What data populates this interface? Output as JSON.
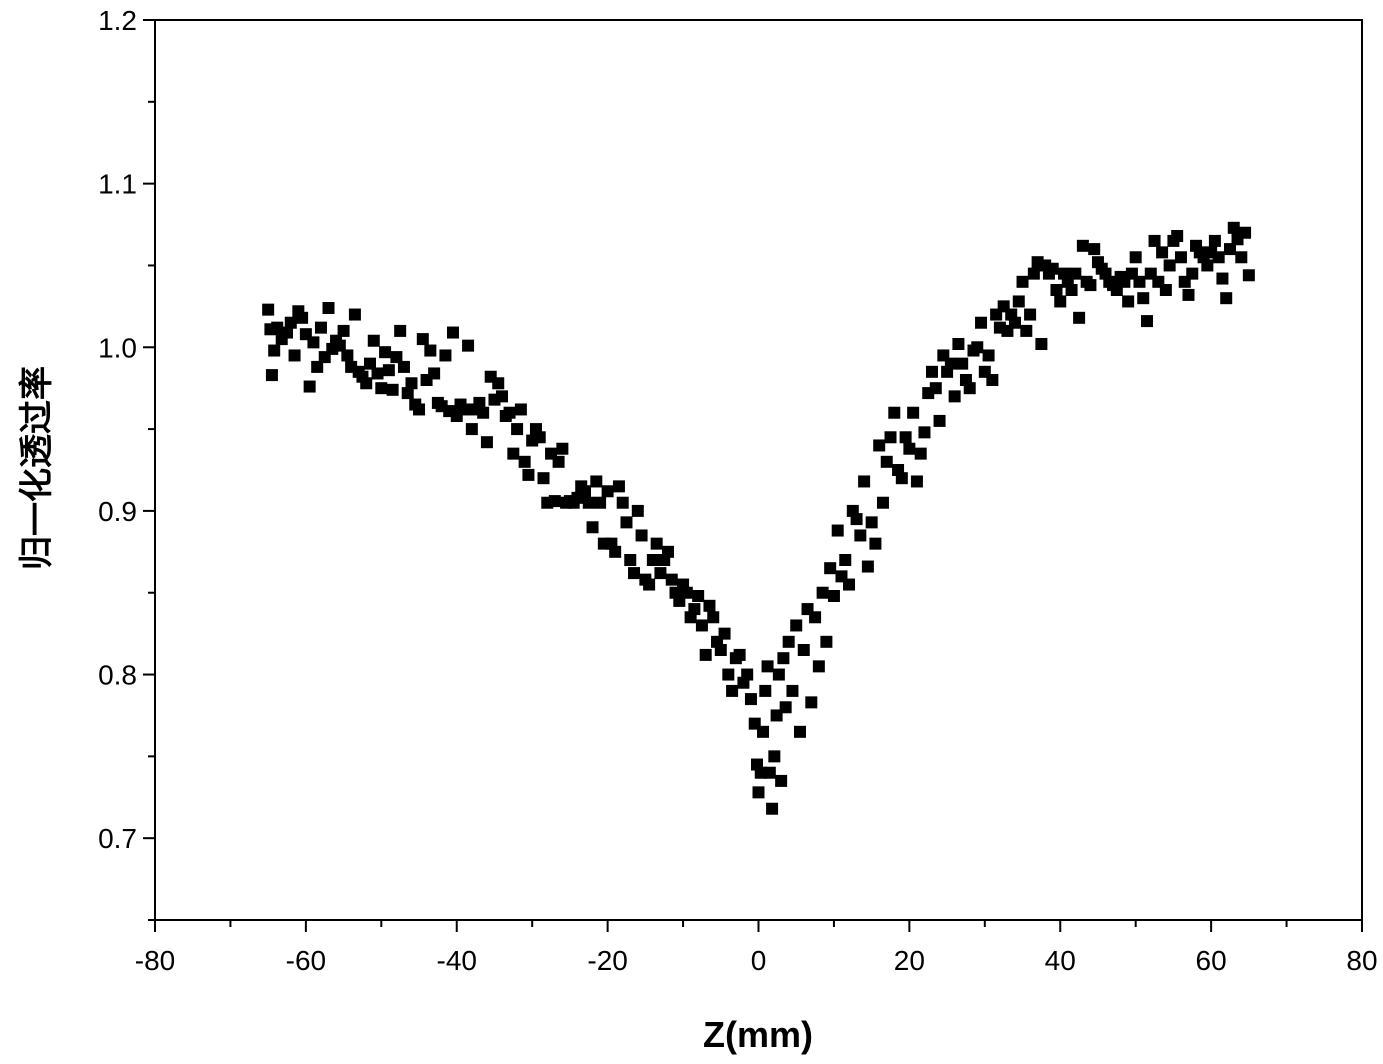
{
  "chart_data": {
    "type": "scatter",
    "title": "",
    "xlabel": "Z(mm)",
    "ylabel": "归一化透过率",
    "xlim": [
      -80,
      80
    ],
    "ylim": [
      0.65,
      1.2
    ],
    "x_ticks": [
      -80,
      -60,
      -40,
      -20,
      0,
      20,
      40,
      60,
      80
    ],
    "x_tick_labels": [
      "-80",
      "-60",
      "-40",
      "-20",
      "0",
      "20",
      "40",
      "60",
      "80"
    ],
    "y_ticks": [
      0.7,
      0.8,
      0.9,
      1.0,
      1.1,
      1.2
    ],
    "y_tick_labels": [
      "0.7",
      "0.8",
      "0.9",
      "1.0",
      "1.1",
      "1.2"
    ],
    "grid": false,
    "marker": "square",
    "marker_color": "#000000",
    "series": [
      {
        "points": [
          [
            -65,
            1.023
          ],
          [
            -64.7,
            1.011
          ],
          [
            -64.5,
            0.983
          ],
          [
            -64.2,
            0.998
          ],
          [
            -63.8,
            1.012
          ],
          [
            -63.2,
            1.005
          ],
          [
            -62.5,
            1.009
          ],
          [
            -62,
            1.015
          ],
          [
            -61.5,
            0.995
          ],
          [
            -61,
            1.022
          ],
          [
            -60.5,
            1.018
          ],
          [
            -60,
            1.008
          ],
          [
            -59.5,
            0.976
          ],
          [
            -59,
            1.003
          ],
          [
            -58.5,
            0.988
          ],
          [
            -58,
            1.012
          ],
          [
            -57.5,
            0.994
          ],
          [
            -57,
            1.024
          ],
          [
            -56.5,
            0.999
          ],
          [
            -56,
            1.004
          ],
          [
            -55.5,
            1.001
          ],
          [
            -55,
            1.01
          ],
          [
            -54.5,
            0.995
          ],
          [
            -54,
            0.988
          ],
          [
            -53.5,
            1.02
          ],
          [
            -53,
            0.985
          ],
          [
            -52.5,
            0.982
          ],
          [
            -52,
            0.978
          ],
          [
            -51.5,
            0.99
          ],
          [
            -51,
            1.004
          ],
          [
            -50.5,
            0.984
          ],
          [
            -50,
            0.975
          ],
          [
            -49.5,
            0.997
          ],
          [
            -49,
            0.986
          ],
          [
            -48.5,
            0.974
          ],
          [
            -48,
            0.994
          ],
          [
            -47.5,
            1.01
          ],
          [
            -47,
            0.988
          ],
          [
            -46.5,
            0.972
          ],
          [
            -46,
            0.978
          ],
          [
            -45.5,
            0.965
          ],
          [
            -45,
            0.962
          ],
          [
            -44.5,
            1.005
          ],
          [
            -44,
            0.98
          ],
          [
            -43.5,
            0.998
          ],
          [
            -43,
            0.984
          ],
          [
            -42.5,
            0.966
          ],
          [
            -42,
            0.964
          ],
          [
            -41.5,
            0.995
          ],
          [
            -41,
            0.961
          ],
          [
            -40.5,
            1.009
          ],
          [
            -40,
            0.958
          ],
          [
            -39.5,
            0.965
          ],
          [
            -39,
            0.962
          ],
          [
            -38.5,
            1.001
          ],
          [
            -38,
            0.95
          ],
          [
            -37.5,
            0.962
          ],
          [
            -37,
            0.966
          ],
          [
            -36.5,
            0.96
          ],
          [
            -36,
            0.942
          ],
          [
            -35.5,
            0.982
          ],
          [
            -35,
            0.968
          ],
          [
            -34.5,
            0.978
          ],
          [
            -34,
            0.97
          ],
          [
            -33.5,
            0.958
          ],
          [
            -33,
            0.96
          ],
          [
            -32.5,
            0.935
          ],
          [
            -32,
            0.95
          ],
          [
            -31.5,
            0.962
          ],
          [
            -31,
            0.93
          ],
          [
            -30.5,
            0.922
          ],
          [
            -30,
            0.943
          ],
          [
            -29.5,
            0.95
          ],
          [
            -29,
            0.945
          ],
          [
            -28.5,
            0.92
          ],
          [
            -28,
            0.905
          ],
          [
            -27.5,
            0.935
          ],
          [
            -27,
            0.906
          ],
          [
            -26.5,
            0.93
          ],
          [
            -26,
            0.938
          ],
          [
            -25.5,
            0.905
          ],
          [
            -25,
            0.906
          ],
          [
            -24.5,
            0.905
          ],
          [
            -24,
            0.908
          ],
          [
            -23.5,
            0.915
          ],
          [
            -23,
            0.912
          ],
          [
            -22.5,
            0.905
          ],
          [
            -22,
            0.89
          ],
          [
            -21.5,
            0.918
          ],
          [
            -21,
            0.905
          ],
          [
            -20.5,
            0.88
          ],
          [
            -20,
            0.912
          ],
          [
            -19.5,
            0.88
          ],
          [
            -19,
            0.875
          ],
          [
            -18.5,
            0.915
          ],
          [
            -18,
            0.905
          ],
          [
            -17.5,
            0.893
          ],
          [
            -17,
            0.87
          ],
          [
            -16.5,
            0.862
          ],
          [
            -16,
            0.9
          ],
          [
            -15.5,
            0.885
          ],
          [
            -15,
            0.858
          ],
          [
            -14.5,
            0.855
          ],
          [
            -14,
            0.87
          ],
          [
            -13.5,
            0.88
          ],
          [
            -13,
            0.862
          ],
          [
            -12.5,
            0.87
          ],
          [
            -12,
            0.875
          ],
          [
            -11.5,
            0.858
          ],
          [
            -11,
            0.85
          ],
          [
            -10.5,
            0.845
          ],
          [
            -10,
            0.855
          ],
          [
            -9.5,
            0.85
          ],
          [
            -9,
            0.835
          ],
          [
            -8.5,
            0.84
          ],
          [
            -8,
            0.848
          ],
          [
            -7.5,
            0.83
          ],
          [
            -7,
            0.812
          ],
          [
            -6.5,
            0.842
          ],
          [
            -6,
            0.835
          ],
          [
            -5.5,
            0.82
          ],
          [
            -5,
            0.815
          ],
          [
            -4.5,
            0.825
          ],
          [
            -4,
            0.8
          ],
          [
            -3.5,
            0.79
          ],
          [
            -3,
            0.81
          ],
          [
            -2.5,
            0.812
          ],
          [
            -2,
            0.795
          ],
          [
            -1.5,
            0.8
          ],
          [
            -1,
            0.785
          ],
          [
            -0.5,
            0.77
          ],
          [
            -0.2,
            0.745
          ],
          [
            0,
            0.728
          ],
          [
            0.3,
            0.74
          ],
          [
            0.6,
            0.765
          ],
          [
            0.9,
            0.79
          ],
          [
            1.2,
            0.805
          ],
          [
            1.5,
            0.74
          ],
          [
            1.8,
            0.718
          ],
          [
            2.1,
            0.75
          ],
          [
            2.4,
            0.775
          ],
          [
            2.7,
            0.8
          ],
          [
            3,
            0.735
          ],
          [
            3.3,
            0.81
          ],
          [
            3.6,
            0.78
          ],
          [
            4,
            0.82
          ],
          [
            4.5,
            0.79
          ],
          [
            5,
            0.83
          ],
          [
            5.5,
            0.765
          ],
          [
            6,
            0.815
          ],
          [
            6.5,
            0.84
          ],
          [
            7,
            0.783
          ],
          [
            7.5,
            0.835
          ],
          [
            8,
            0.805
          ],
          [
            8.5,
            0.85
          ],
          [
            9,
            0.82
          ],
          [
            9.5,
            0.865
          ],
          [
            10,
            0.848
          ],
          [
            10.5,
            0.888
          ],
          [
            11,
            0.86
          ],
          [
            11.5,
            0.87
          ],
          [
            12,
            0.855
          ],
          [
            12.5,
            0.9
          ],
          [
            13,
            0.895
          ],
          [
            13.5,
            0.885
          ],
          [
            14,
            0.918
          ],
          [
            14.5,
            0.866
          ],
          [
            15,
            0.893
          ],
          [
            15.5,
            0.88
          ],
          [
            16,
            0.94
          ],
          [
            16.5,
            0.905
          ],
          [
            17,
            0.93
          ],
          [
            17.5,
            0.945
          ],
          [
            18,
            0.96
          ],
          [
            18.5,
            0.925
          ],
          [
            19,
            0.92
          ],
          [
            19.5,
            0.945
          ],
          [
            20,
            0.938
          ],
          [
            20.5,
            0.96
          ],
          [
            21,
            0.918
          ],
          [
            21.5,
            0.935
          ],
          [
            22,
            0.948
          ],
          [
            22.5,
            0.972
          ],
          [
            23,
            0.985
          ],
          [
            23.5,
            0.975
          ],
          [
            24,
            0.955
          ],
          [
            24.5,
            0.995
          ],
          [
            25,
            0.985
          ],
          [
            25.5,
            0.99
          ],
          [
            26,
            0.97
          ],
          [
            26.5,
            1.002
          ],
          [
            27,
            0.99
          ],
          [
            27.5,
            0.98
          ],
          [
            28,
            0.975
          ],
          [
            28.5,
            0.998
          ],
          [
            29,
            1.0
          ],
          [
            29.5,
            1.015
          ],
          [
            30,
            0.985
          ],
          [
            30.5,
            0.995
          ],
          [
            31,
            0.98
          ],
          [
            31.5,
            1.02
          ],
          [
            32,
            1.012
          ],
          [
            32.5,
            1.025
          ],
          [
            33,
            1.01
          ],
          [
            33.5,
            1.02
          ],
          [
            34,
            1.015
          ],
          [
            34.5,
            1.028
          ],
          [
            35,
            1.04
          ],
          [
            35.5,
            1.01
          ],
          [
            36,
            1.02
          ],
          [
            36.5,
            1.045
          ],
          [
            37,
            1.052
          ],
          [
            37.5,
            1.002
          ],
          [
            38,
            1.05
          ],
          [
            38.5,
            1.045
          ],
          [
            39,
            1.048
          ],
          [
            39.5,
            1.035
          ],
          [
            40,
            1.028
          ],
          [
            40.5,
            1.045
          ],
          [
            41,
            1.04
          ],
          [
            41.5,
            1.035
          ],
          [
            42,
            1.045
          ],
          [
            42.5,
            1.018
          ],
          [
            43,
            1.062
          ],
          [
            43.5,
            1.04
          ],
          [
            44,
            1.038
          ],
          [
            44.5,
            1.06
          ],
          [
            45,
            1.052
          ],
          [
            45.5,
            1.048
          ],
          [
            46,
            1.045
          ],
          [
            46.5,
            1.04
          ],
          [
            47,
            1.038
          ],
          [
            47.5,
            1.035
          ],
          [
            48,
            1.043
          ],
          [
            48.5,
            1.04
          ],
          [
            49,
            1.028
          ],
          [
            49.5,
            1.045
          ],
          [
            50,
            1.055
          ],
          [
            50.5,
            1.04
          ],
          [
            51,
            1.03
          ],
          [
            51.5,
            1.016
          ],
          [
            52,
            1.045
          ],
          [
            52.5,
            1.065
          ],
          [
            53,
            1.04
          ],
          [
            53.5,
            1.058
          ],
          [
            54,
            1.035
          ],
          [
            54.5,
            1.05
          ],
          [
            55,
            1.065
          ],
          [
            55.5,
            1.068
          ],
          [
            56,
            1.055
          ],
          [
            56.5,
            1.04
          ],
          [
            57,
            1.032
          ],
          [
            57.5,
            1.045
          ],
          [
            58,
            1.062
          ],
          [
            58.5,
            1.058
          ],
          [
            59,
            1.055
          ],
          [
            59.5,
            1.05
          ],
          [
            60,
            1.058
          ],
          [
            60.5,
            1.065
          ],
          [
            61,
            1.055
          ],
          [
            61.5,
            1.042
          ],
          [
            62,
            1.03
          ],
          [
            62.5,
            1.06
          ],
          [
            63,
            1.073
          ],
          [
            63.5,
            1.066
          ],
          [
            64,
            1.055
          ],
          [
            64.5,
            1.07
          ],
          [
            65,
            1.044
          ]
        ]
      }
    ]
  }
}
